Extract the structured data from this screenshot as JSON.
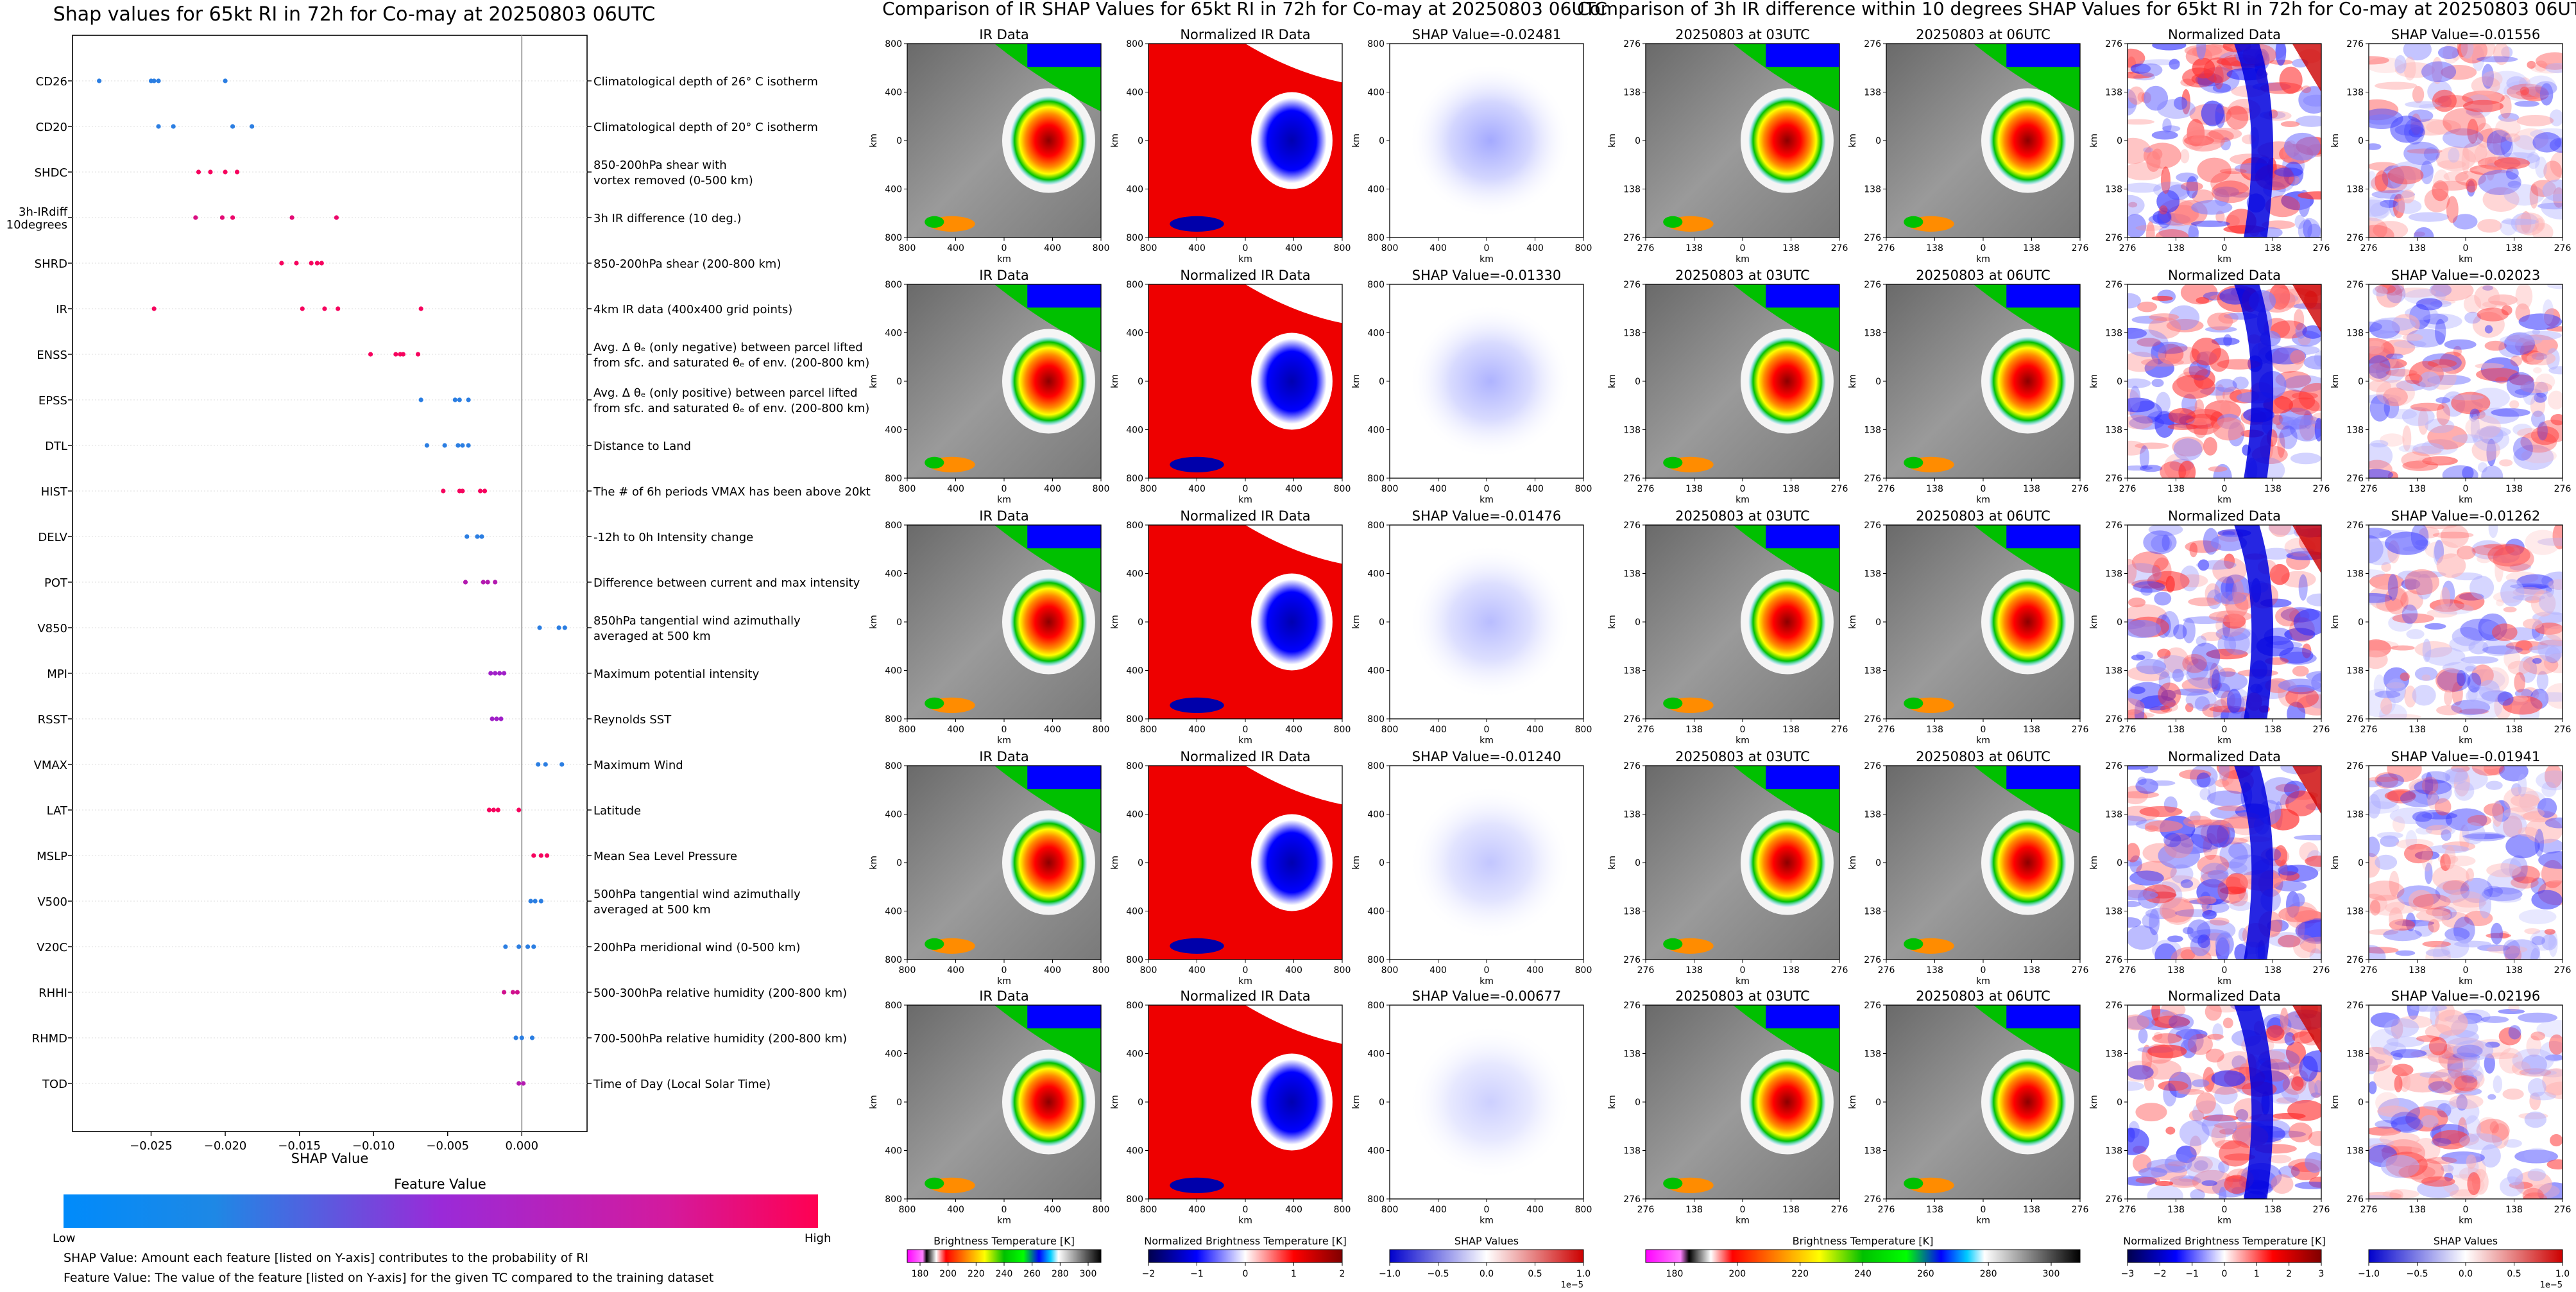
{
  "panel1": {
    "title": "Shap values for 65kt RI in 72h for Co-may at 20250803 06UTC",
    "xlabel": "SHAP Value",
    "colorbar_title": "Feature Value",
    "colorbar_low": "Low",
    "colorbar_high": "High",
    "footnote1": "SHAP Value: Amount each feature [listed on Y-axis] contributes to the probability of RI",
    "footnote2": "Feature Value: The value of the feature [listed on Y-axis] for the given TC compared to the training dataset"
  },
  "panel2": {
    "title": "Comparison of IR SHAP Values for 65kt RI in 72h for Co-may at 20250803 06UTC",
    "col_titles": [
      "IR Data",
      "Normalized IR Data"
    ],
    "shap_titles": [
      "SHAP Value=-0.02481",
      "SHAP Value=-0.01330",
      "SHAP Value=-0.01476",
      "SHAP Value=-0.01240",
      "SHAP Value=-0.00677"
    ],
    "ticks": [
      "800",
      "400",
      "0",
      "400",
      "800"
    ],
    "axis_label": "km",
    "cbar_labels": [
      "Brightness Temperature [K]",
      "Normalized Brightness Temperature [K]",
      "SHAP Values"
    ],
    "cbar1_ticks": [
      "180",
      "200",
      "220",
      "240",
      "260",
      "280",
      "300"
    ],
    "cbar2_ticks": [
      "−2",
      "−1",
      "0",
      "1",
      "2"
    ],
    "cbar3_ticks": [
      "−1.0",
      "−0.5",
      "0.0",
      "0.5",
      "1.0"
    ],
    "cbar3_exp": "1e−5"
  },
  "panel3": {
    "title": "Comparison of 3h IR difference within 10 degrees SHAP Values for 65kt RI in 72h for Co-may at 20250803 06UTC",
    "col_titles": [
      "20250803 at 03UTC",
      "20250803 at 06UTC",
      "Normalized Data"
    ],
    "shap_titles": [
      "SHAP Value=-0.01556",
      "SHAP Value=-0.02023",
      "SHAP Value=-0.01262",
      "SHAP Value=-0.01941",
      "SHAP Value=-0.02196"
    ],
    "ticks": [
      "276",
      "138",
      "0",
      "138",
      "276"
    ],
    "axis_label": "km",
    "cbar_labels": [
      "Brightness Temperature [K]",
      "Normalized Brightness Temperature [K]",
      "SHAP Values"
    ],
    "cbar1_ticks": [
      "180",
      "200",
      "220",
      "240",
      "260",
      "280",
      "300"
    ],
    "cbar2_ticks": [
      "−3",
      "−2",
      "−1",
      "0",
      "1",
      "2",
      "3"
    ],
    "cbar3_ticks": [
      "−1.0",
      "−0.5",
      "0.0",
      "0.5",
      "1.0"
    ],
    "cbar3_exp": "1e−5"
  },
  "colors": {
    "low": "#1e88e5",
    "mid": "#a020c8",
    "high": "#ff0052"
  },
  "chart_data": [
    {
      "type": "scatter",
      "title": "Shap values for 65kt RI in 72h for Co-may at 20250803 06UTC",
      "xlabel": "SHAP Value",
      "xlim": [
        -0.0303,
        0.0044
      ],
      "xticks": [
        "−0.025",
        "−0.020",
        "−0.015",
        "−0.010",
        "−0.005",
        "0.000"
      ],
      "xtick_values": [
        -0.025,
        -0.02,
        -0.015,
        -0.01,
        -0.005,
        0.0
      ],
      "features": [
        {
          "name": "CD26",
          "desc": "Climatological depth of 26° C isotherm",
          "shap": [
            -0.0285,
            -0.025,
            -0.0248,
            -0.0245,
            -0.02
          ],
          "fv": [
            0.05,
            0.05,
            0.05,
            0.05,
            0.05
          ]
        },
        {
          "name": "CD20",
          "desc": "Climatological depth of 20° C isotherm",
          "shap": [
            -0.0245,
            -0.0235,
            -0.0195,
            -0.0182
          ],
          "fv": [
            0.05,
            0.05,
            0.05,
            0.05
          ]
        },
        {
          "name": "SHDC",
          "desc": "850-200hPa shear with\nvortex removed (0-500 km)",
          "shap": [
            -0.0218,
            -0.021,
            -0.02,
            -0.0192
          ],
          "fv": [
            0.95,
            0.95,
            0.95,
            0.95
          ]
        },
        {
          "name": "3h-IRdiff\n10degrees",
          "desc": "3h IR difference (10 deg.)",
          "shap": [
            -0.022,
            -0.0202,
            -0.0195,
            -0.0155,
            -0.0125
          ],
          "fv": [
            0.8,
            0.85,
            0.9,
            0.85,
            0.9
          ]
        },
        {
          "name": "SHRD",
          "desc": "850-200hPa shear (200-800 km)",
          "shap": [
            -0.0162,
            -0.0152,
            -0.0142,
            -0.0138,
            -0.0135
          ],
          "fv": [
            0.95,
            0.95,
            0.95,
            0.95,
            0.95
          ]
        },
        {
          "name": "IR",
          "desc": "4km IR data (400x400 grid points)",
          "shap": [
            -0.0248,
            -0.0148,
            -0.0133,
            -0.0124,
            -0.0068
          ],
          "fv": [
            0.95,
            0.95,
            0.95,
            0.95,
            0.95
          ]
        },
        {
          "name": "ENSS",
          "desc": "Avg. Δ θₑ (only negative) between parcel lifted\nfrom sfc. and saturated θₑ of env. (200-800 km)",
          "shap": [
            -0.0102,
            -0.0085,
            -0.0082,
            -0.008,
            -0.007
          ],
          "fv": [
            0.95,
            0.95,
            0.95,
            0.95,
            0.95
          ]
        },
        {
          "name": "EPSS",
          "desc": "Avg. Δ θₑ (only positive) between parcel lifted\nfrom sfc. and saturated θₑ of env. (200-800 km)",
          "shap": [
            -0.0068,
            -0.0045,
            -0.0042,
            -0.0036
          ],
          "fv": [
            0.05,
            0.05,
            0.05,
            0.05
          ]
        },
        {
          "name": "DTL",
          "desc": "Distance to Land",
          "shap": [
            -0.0064,
            -0.0052,
            -0.0043,
            -0.004,
            -0.0036
          ],
          "fv": [
            0.05,
            0.05,
            0.05,
            0.05,
            0.05
          ]
        },
        {
          "name": "HIST",
          "desc": "The # of 6h periods VMAX has been above 20kt",
          "shap": [
            -0.0053,
            -0.0042,
            -0.004,
            -0.0028,
            -0.0025
          ],
          "fv": [
            0.95,
            0.95,
            0.95,
            0.95,
            0.95
          ]
        },
        {
          "name": "DELV",
          "desc": "-12h to 0h Intensity change",
          "shap": [
            -0.0037,
            -0.003,
            -0.0027
          ],
          "fv": [
            0.05,
            0.05,
            0.05
          ]
        },
        {
          "name": "POT",
          "desc": "Difference between current and max intensity",
          "shap": [
            -0.0038,
            -0.0026,
            -0.0023,
            -0.0018
          ],
          "fv": [
            0.6,
            0.6,
            0.6,
            0.6
          ]
        },
        {
          "name": "V850",
          "desc": "850hPa tangential wind azimuthally\naveraged at 500 km",
          "shap": [
            0.0012,
            0.0025,
            0.0029
          ],
          "fv": [
            0.05,
            0.05,
            0.05
          ]
        },
        {
          "name": "MPI",
          "desc": "Maximum potential intensity",
          "shap": [
            -0.0021,
            -0.0018,
            -0.0015,
            -0.0012
          ],
          "fv": [
            0.5,
            0.5,
            0.5,
            0.5
          ]
        },
        {
          "name": "RSST",
          "desc": "Reynolds SST",
          "shap": [
            -0.002,
            -0.0017,
            -0.0014
          ],
          "fv": [
            0.5,
            0.5,
            0.5
          ]
        },
        {
          "name": "VMAX",
          "desc": "Maximum Wind",
          "shap": [
            0.0011,
            0.0016,
            0.0027
          ],
          "fv": [
            0.05,
            0.05,
            0.05
          ]
        },
        {
          "name": "LAT",
          "desc": "Latitude",
          "shap": [
            -0.0022,
            -0.0019,
            -0.0016,
            -0.0002
          ],
          "fv": [
            0.95,
            0.95,
            0.95,
            0.95
          ]
        },
        {
          "name": "MSLP",
          "desc": "Mean Sea Level Pressure",
          "shap": [
            0.0008,
            0.0013,
            0.0017
          ],
          "fv": [
            0.95,
            0.95,
            0.95
          ]
        },
        {
          "name": "V500",
          "desc": "500hPa tangential wind azimuthally\naveraged at 500 km",
          "shap": [
            0.0006,
            0.0009,
            0.0013
          ],
          "fv": [
            0.05,
            0.05,
            0.05
          ]
        },
        {
          "name": "V20C",
          "desc": "200hPa meridional wind (0-500 km)",
          "shap": [
            -0.0011,
            -0.0002,
            0.0004,
            0.0008
          ],
          "fv": [
            0.05,
            0.05,
            0.05,
            0.05
          ]
        },
        {
          "name": "RHHI",
          "desc": "500-300hPa relative humidity (200-800 km)",
          "shap": [
            -0.0012,
            -0.0006,
            -0.0003
          ],
          "fv": [
            0.75,
            0.75,
            0.75
          ]
        },
        {
          "name": "RHMD",
          "desc": "700-500hPa relative humidity (200-800 km)",
          "shap": [
            -0.0004,
            0.0,
            0.0007
          ],
          "fv": [
            0.05,
            0.05,
            0.05
          ]
        },
        {
          "name": "TOD",
          "desc": "Time of Day (Local Solar Time)",
          "shap": [
            -0.0002,
            0.0001
          ],
          "fv": [
            0.6,
            0.6
          ]
        }
      ]
    },
    {
      "type": "heatmap",
      "title": "Comparison of IR SHAP Values for 65kt RI in 72h for Co-may at 20250803 06UTC",
      "rows": 5,
      "columns": [
        "IR Data",
        "Normalized IR Data",
        "SHAP"
      ],
      "shap_values": [
        -0.02481,
        -0.0133,
        -0.01476,
        -0.0124,
        -0.00677
      ],
      "xlim": [
        -800,
        800
      ],
      "ylim": [
        -800,
        800
      ],
      "colorbars": [
        {
          "label": "Brightness Temperature [K]",
          "range": [
            180,
            310
          ]
        },
        {
          "label": "Normalized Brightness Temperature [K]",
          "range": [
            -2,
            2
          ]
        },
        {
          "label": "SHAP Values",
          "range": [
            -1.0,
            1.0
          ],
          "scale": "1e-5"
        }
      ]
    },
    {
      "type": "heatmap",
      "title": "Comparison of 3h IR difference within 10 degrees SHAP Values for 65kt RI in 72h for Co-may at 20250803 06UTC",
      "rows": 5,
      "columns": [
        "20250803 at 03UTC",
        "20250803 at 06UTC",
        "Normalized Data",
        "SHAP"
      ],
      "shap_values": [
        -0.01556,
        -0.02023,
        -0.01262,
        -0.01941,
        -0.02196
      ],
      "xlim": [
        -276,
        276
      ],
      "ylim": [
        -276,
        276
      ],
      "colorbars": [
        {
          "label": "Brightness Temperature [K]",
          "range": [
            180,
            310
          ]
        },
        {
          "label": "Normalized Brightness Temperature [K]",
          "range": [
            -3,
            3
          ]
        },
        {
          "label": "SHAP Values",
          "range": [
            -1.0,
            1.0
          ],
          "scale": "1e-5"
        }
      ]
    }
  ]
}
